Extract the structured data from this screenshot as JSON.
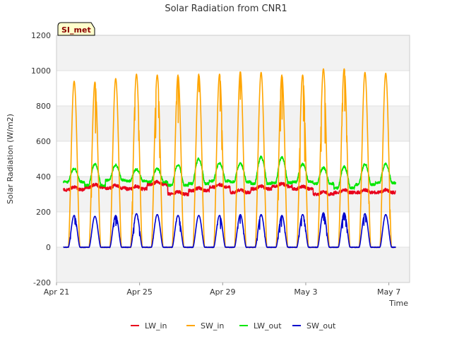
{
  "chart_data": {
    "type": "line",
    "title": "Solar Radiation from CNR1",
    "xlabel": "Time",
    "ylabel": "Solar Radiation (W/m2)",
    "badge": "SI_met",
    "xlim": [
      0,
      17
    ],
    "ylim": [
      -200,
      1200
    ],
    "yticks": [
      -200,
      0,
      200,
      400,
      600,
      800,
      1000,
      1200
    ],
    "xticks": [
      {
        "day": 0,
        "label": "Apr 21"
      },
      {
        "day": 4,
        "label": "Apr 25"
      },
      {
        "day": 8,
        "label": "Apr 29"
      },
      {
        "day": 12,
        "label": "May 3"
      },
      {
        "day": 16,
        "label": "May 7"
      }
    ],
    "grid": true,
    "legend_position": "bottom",
    "data_start_day": 0.33,
    "data_end_day": 16.33,
    "daily_peaks": {
      "days": [
        0.85,
        1.85,
        2.85,
        3.85,
        4.85,
        5.85,
        6.85,
        7.85,
        8.85,
        9.85,
        10.85,
        11.85,
        12.85,
        13.85,
        14.85,
        15.85
      ],
      "SW_in_max": [
        940,
        935,
        955,
        980,
        975,
        975,
        980,
        980,
        995,
        990,
        975,
        975,
        1010,
        1010,
        990,
        985
      ],
      "SW_out_max": [
        180,
        175,
        180,
        190,
        185,
        180,
        180,
        180,
        185,
        185,
        180,
        185,
        195,
        195,
        190,
        185
      ],
      "LW_out_max": [
        445,
        470,
        465,
        440,
        445,
        465,
        500,
        475,
        475,
        510,
        510,
        470,
        450,
        455,
        470,
        470
      ],
      "LW_out_min": [
        370,
        350,
        380,
        375,
        370,
        350,
        360,
        375,
        370,
        360,
        365,
        370,
        360,
        335,
        355,
        365
      ],
      "LW_in_mean": [
        325,
        340,
        335,
        330,
        355,
        300,
        320,
        340,
        310,
        330,
        345,
        330,
        300,
        310,
        310,
        310
      ]
    },
    "series": [
      {
        "name": "LW_in",
        "color": "#e8001c"
      },
      {
        "name": "SW_in",
        "color": "#ffa500"
      },
      {
        "name": "LW_out",
        "color": "#00e600"
      },
      {
        "name": "SW_out",
        "color": "#0000cc"
      }
    ]
  }
}
